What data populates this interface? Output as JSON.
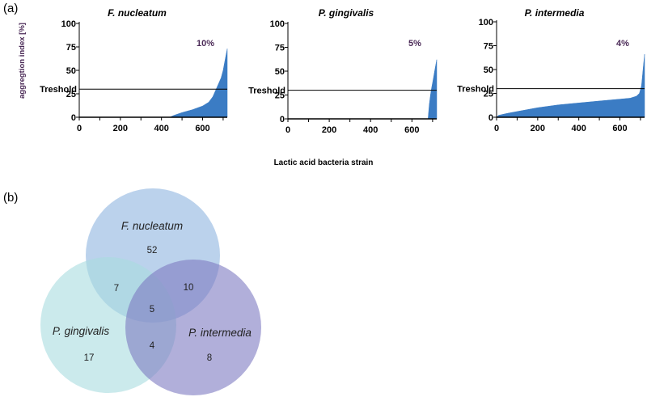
{
  "panel_labels": {
    "a": "(a)",
    "b": "(b)"
  },
  "shared": {
    "ylabel": "aggregtion index [%]",
    "xlabel": "Lactic acid bacteria strain",
    "threshold_label": "Treshold",
    "threshold_value": 30
  },
  "chart_data": [
    {
      "type": "area",
      "title": "F. nucleatum",
      "annotation": "10%",
      "xlim": [
        0,
        720
      ],
      "ylim": [
        0,
        100
      ],
      "xticks": [
        0,
        200,
        400,
        600
      ],
      "yticks": [
        0,
        25,
        50,
        75,
        100
      ],
      "threshold": 30,
      "color": "#3b7cc4",
      "x": [
        0,
        440,
        460,
        500,
        550,
        600,
        630,
        650,
        670,
        690,
        700,
        710,
        720
      ],
      "y": [
        0,
        0,
        2,
        5,
        8,
        12,
        16,
        22,
        32,
        42,
        50,
        62,
        73
      ]
    },
    {
      "type": "area",
      "title": "P. gingivalis",
      "annotation": "5%",
      "xlim": [
        0,
        720
      ],
      "ylim": [
        0,
        100
      ],
      "xticks": [
        0,
        200,
        400,
        600
      ],
      "yticks": [
        0,
        25,
        50,
        75,
        100
      ],
      "threshold": 30,
      "color": "#3b7cc4",
      "x": [
        0,
        678,
        684,
        690,
        695,
        700,
        705,
        710,
        715,
        720
      ],
      "y": [
        0,
        0,
        15,
        25,
        32,
        38,
        44,
        50,
        56,
        62
      ]
    },
    {
      "type": "area",
      "title": "P. intermedia",
      "annotation": "4%",
      "xlim": [
        0,
        720
      ],
      "ylim": [
        0,
        100
      ],
      "xticks": [
        0,
        200,
        400,
        600
      ],
      "yticks": [
        0,
        25,
        50,
        75,
        100
      ],
      "threshold": 30,
      "color": "#3b7cc4",
      "x": [
        0,
        10,
        50,
        100,
        200,
        300,
        400,
        500,
        600,
        650,
        680,
        695,
        705,
        715,
        720
      ],
      "y": [
        0,
        2,
        4,
        6,
        10,
        13,
        15,
        17,
        19,
        20,
        22,
        25,
        33,
        55,
        66
      ]
    },
    {
      "type": "venn",
      "sets": [
        {
          "name": "F. nucleatum",
          "color": "#8eb4e0"
        },
        {
          "name": "P. gingivalis",
          "color": "#a9dcdf"
        },
        {
          "name": "P. intermedia",
          "color": "#7d79c2"
        }
      ],
      "regions": {
        "F_only": 52,
        "G_only": 17,
        "I_only": 8,
        "F_G": 7,
        "F_I": 10,
        "G_I": 4,
        "F_G_I": 5
      }
    }
  ]
}
